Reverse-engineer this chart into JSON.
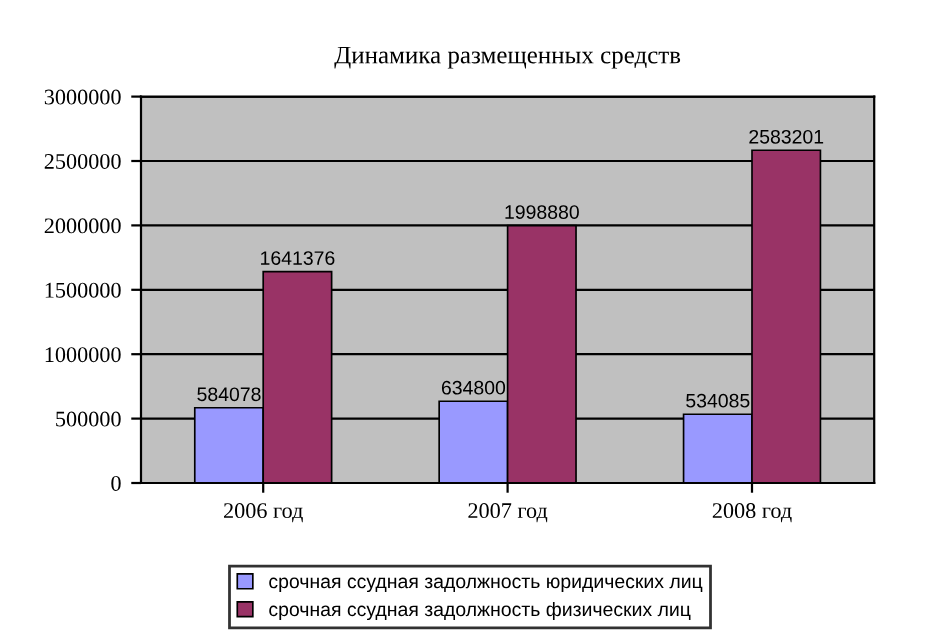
{
  "chart_data": {
    "type": "bar",
    "title": "Динамика размещенных средств",
    "categories": [
      "2006 год",
      "2007 год",
      "2008 год"
    ],
    "series": [
      {
        "name": "срочная ссудная задолжность юридических лиц",
        "color": "#9999ff",
        "values": [
          584078,
          634800,
          534085
        ]
      },
      {
        "name": "срочная ссудная задолжность физических лиц",
        "color": "#993366",
        "values": [
          1641376,
          1998880,
          2583201
        ]
      }
    ],
    "ylim": [
      0,
      3000000
    ],
    "yticks": [
      0,
      500000,
      1000000,
      1500000,
      2000000,
      2500000,
      3000000
    ],
    "grid": "y",
    "legend": "bottom",
    "data_labels": true
  }
}
